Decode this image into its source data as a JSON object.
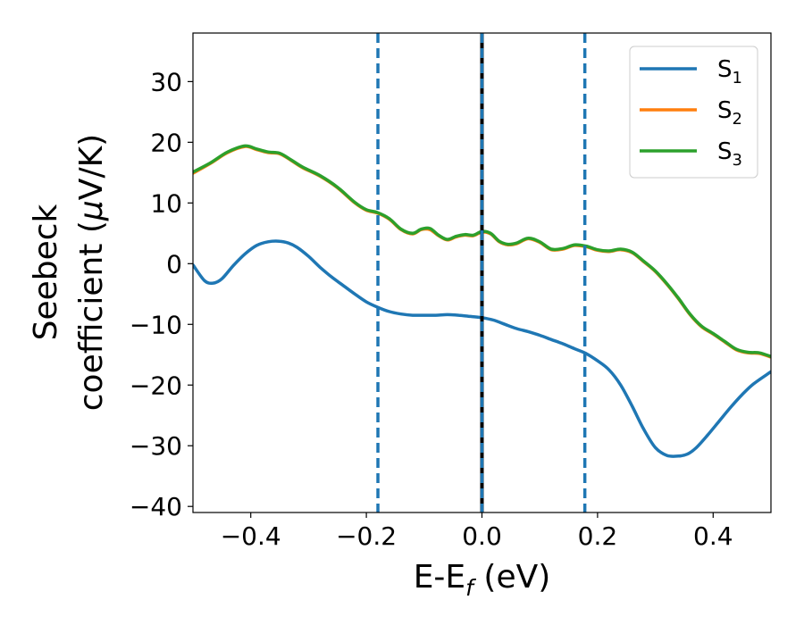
{
  "chart_data": {
    "type": "line",
    "xlabel": {
      "main": "E-E",
      "sub": "f",
      "unit": " (eV)"
    },
    "ylabel": {
      "line1": "Seebeck",
      "line2_prefix": "coefficient  (",
      "mu": "μ",
      "line2_suffix": "V/K)"
    },
    "xlim": [
      -0.5,
      0.5
    ],
    "ylim": [
      -41,
      38
    ],
    "xticks": [
      -0.4,
      -0.2,
      0.0,
      0.2,
      0.4
    ],
    "xtick_labels": [
      "−0.4",
      "−0.2",
      "0.0",
      "0.2",
      "0.4"
    ],
    "yticks": [
      -40,
      -30,
      -20,
      -10,
      0,
      10,
      20,
      30
    ],
    "ytick_labels": [
      "−40",
      "−30",
      "−20",
      "−10",
      "0",
      "10",
      "20",
      "30"
    ],
    "grid": false,
    "legend_position": "top-right",
    "vlines": [
      {
        "x": -0.18,
        "style": "dashed",
        "color": "#1f77b4"
      },
      {
        "x": 0.0,
        "style": "solid",
        "color": "#000000"
      },
      {
        "x": 0.0,
        "style": "dashed",
        "color": "#1f77b4"
      },
      {
        "x": 0.178,
        "style": "dashed",
        "color": "#1f77b4"
      }
    ],
    "series": [
      {
        "name": "S",
        "subscript": "1",
        "color": "#1f77b4",
        "x": [
          -0.5,
          -0.48,
          -0.465,
          -0.45,
          -0.43,
          -0.41,
          -0.39,
          -0.37,
          -0.35,
          -0.335,
          -0.32,
          -0.3,
          -0.28,
          -0.26,
          -0.24,
          -0.22,
          -0.2,
          -0.18,
          -0.16,
          -0.14,
          -0.12,
          -0.1,
          -0.08,
          -0.06,
          -0.04,
          -0.02,
          0.0,
          0.02,
          0.04,
          0.06,
          0.08,
          0.1,
          0.12,
          0.14,
          0.16,
          0.18,
          0.2,
          0.22,
          0.24,
          0.26,
          0.28,
          0.3,
          0.32,
          0.34,
          0.355,
          0.37,
          0.39,
          0.41,
          0.43,
          0.45,
          0.47,
          0.5
        ],
        "y": [
          -0.2,
          -2.8,
          -3.2,
          -2.5,
          -0.3,
          1.6,
          3.0,
          3.6,
          3.7,
          3.4,
          2.7,
          1.2,
          -0.6,
          -2.2,
          -3.6,
          -5.0,
          -6.3,
          -7.2,
          -7.9,
          -8.3,
          -8.5,
          -8.5,
          -8.5,
          -8.4,
          -8.5,
          -8.7,
          -8.9,
          -9.3,
          -10.0,
          -10.7,
          -11.2,
          -11.8,
          -12.5,
          -13.2,
          -14.0,
          -14.8,
          -16.0,
          -17.5,
          -20.0,
          -23.5,
          -27.3,
          -30.3,
          -31.6,
          -31.7,
          -31.4,
          -30.4,
          -28.3,
          -26.0,
          -23.7,
          -21.6,
          -19.8,
          -17.8
        ]
      },
      {
        "name": "S",
        "subscript": "2",
        "color": "#ff7f0e",
        "x": [
          -0.5,
          -0.47,
          -0.44,
          -0.41,
          -0.39,
          -0.37,
          -0.35,
          -0.33,
          -0.31,
          -0.28,
          -0.25,
          -0.22,
          -0.2,
          -0.18,
          -0.16,
          -0.14,
          -0.12,
          -0.105,
          -0.09,
          -0.075,
          -0.06,
          -0.045,
          -0.03,
          -0.015,
          0.0,
          0.015,
          0.03,
          0.045,
          0.06,
          0.08,
          0.1,
          0.12,
          0.14,
          0.16,
          0.18,
          0.2,
          0.22,
          0.24,
          0.26,
          0.28,
          0.3,
          0.32,
          0.34,
          0.36,
          0.38,
          0.4,
          0.42,
          0.44,
          0.46,
          0.48,
          0.5
        ],
        "y": [
          14.9,
          16.5,
          18.3,
          19.3,
          18.8,
          18.3,
          18.1,
          17.0,
          15.8,
          14.4,
          12.5,
          10.0,
          8.8,
          8.3,
          7.3,
          5.6,
          4.9,
          5.6,
          5.6,
          4.6,
          3.9,
          4.4,
          4.7,
          4.6,
          5.2,
          4.9,
          3.6,
          3.1,
          3.3,
          4.1,
          3.5,
          2.3,
          2.4,
          3.0,
          2.8,
          2.2,
          2.0,
          2.3,
          1.8,
          0.3,
          -1.3,
          -3.4,
          -5.8,
          -8.4,
          -10.4,
          -11.6,
          -12.9,
          -14.2,
          -14.7,
          -14.8,
          -15.4
        ]
      },
      {
        "name": "S",
        "subscript": "3",
        "color": "#2ca02c",
        "x": [
          -0.5,
          -0.47,
          -0.44,
          -0.41,
          -0.39,
          -0.37,
          -0.35,
          -0.33,
          -0.31,
          -0.28,
          -0.25,
          -0.22,
          -0.2,
          -0.18,
          -0.16,
          -0.14,
          -0.12,
          -0.105,
          -0.09,
          -0.075,
          -0.06,
          -0.045,
          -0.03,
          -0.015,
          0.0,
          0.015,
          0.03,
          0.045,
          0.06,
          0.08,
          0.1,
          0.12,
          0.14,
          0.16,
          0.18,
          0.2,
          0.22,
          0.24,
          0.26,
          0.28,
          0.3,
          0.32,
          0.34,
          0.36,
          0.38,
          0.4,
          0.42,
          0.44,
          0.46,
          0.48,
          0.5
        ],
        "y": [
          15.1,
          16.6,
          18.4,
          19.4,
          18.9,
          18.4,
          18.2,
          17.1,
          15.9,
          14.5,
          12.6,
          10.1,
          8.9,
          8.4,
          7.4,
          5.7,
          5.0,
          5.7,
          5.8,
          4.7,
          4.0,
          4.5,
          4.8,
          4.7,
          5.3,
          5.0,
          3.7,
          3.2,
          3.4,
          4.2,
          3.6,
          2.4,
          2.5,
          3.1,
          2.9,
          2.3,
          2.1,
          2.4,
          1.9,
          0.4,
          -1.2,
          -3.3,
          -5.7,
          -8.3,
          -10.3,
          -11.5,
          -12.8,
          -14.1,
          -14.6,
          -14.7,
          -15.3
        ]
      }
    ]
  }
}
